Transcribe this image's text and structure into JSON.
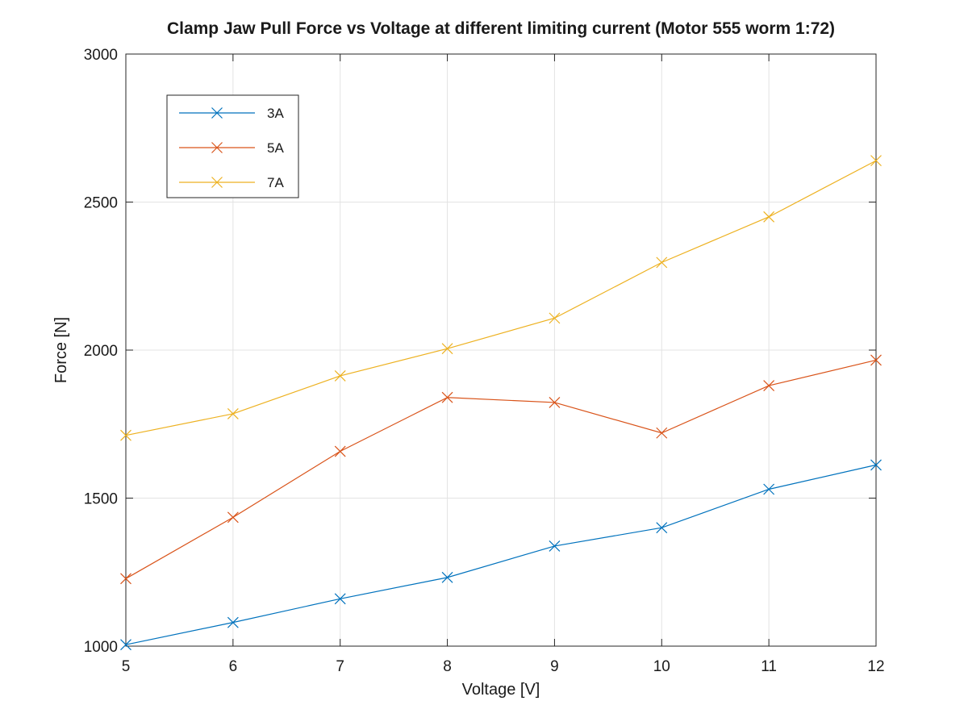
{
  "chart_data": {
    "type": "line",
    "title": "Clamp Jaw Pull Force vs Voltage at different limiting current (Motor 555 worm 1:72)",
    "xlabel": "Voltage [V]",
    "ylabel": "Force [N]",
    "x": [
      5,
      6,
      7,
      8,
      9,
      10,
      11,
      12
    ],
    "xlim": [
      5,
      12
    ],
    "ylim": [
      1000,
      3000
    ],
    "xticks": [
      "5",
      "6",
      "7",
      "8",
      "9",
      "10",
      "11",
      "12"
    ],
    "yticks": [
      "1000",
      "1500",
      "2000",
      "2500",
      "3000"
    ],
    "grid": true,
    "marker": "x",
    "legend_position": "top-left",
    "series": [
      {
        "name": "3A",
        "color": "#0072BD",
        "values": [
          1005,
          1080,
          1160,
          1232,
          1338,
          1400,
          1530,
          1612
        ]
      },
      {
        "name": "5A",
        "color": "#D95319",
        "values": [
          1228,
          1435,
          1658,
          1840,
          1823,
          1720,
          1880,
          1966
        ]
      },
      {
        "name": "7A",
        "color": "#EDB120",
        "values": [
          1712,
          1785,
          1913,
          2005,
          2108,
          2296,
          2450,
          2640
        ]
      }
    ]
  }
}
